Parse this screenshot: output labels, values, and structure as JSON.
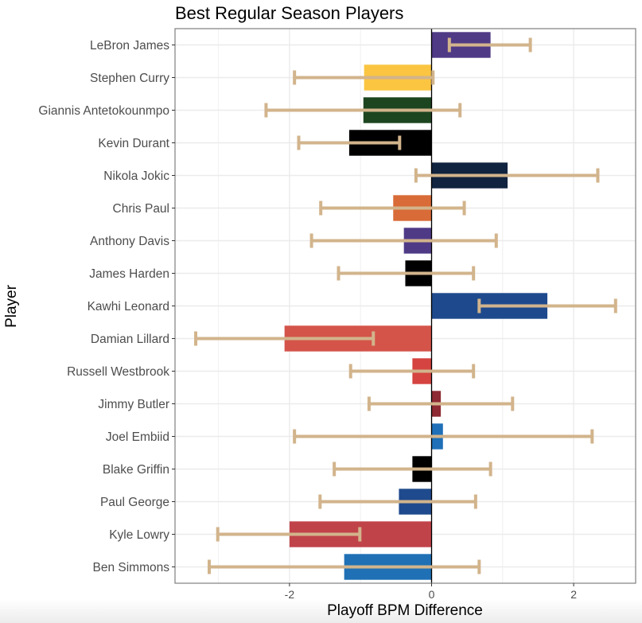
{
  "chart_data": {
    "type": "bar",
    "orientation": "horizontal",
    "title": "Best Regular Season Players",
    "xlabel": "Playoff BPM Difference",
    "ylabel": "Player",
    "xlim": [
      -3.6,
      2.85
    ],
    "xticks": [
      -2,
      0,
      2
    ],
    "xtick_labels": [
      "-2",
      "0",
      "2"
    ],
    "grid": true,
    "legend": "none",
    "error_bar_color": "#d2b48c",
    "zero_line_color": "#000000",
    "categories": [
      "LeBron James",
      "Stephen Curry",
      "Giannis Antetokounmpo",
      "Kevin Durant",
      "Nikola Jokic",
      "Chris Paul",
      "Anthony Davis",
      "James Harden",
      "Kawhi Leonard",
      "Damian Lillard",
      "Russell Westbrook",
      "Jimmy Butler",
      "Joel Embiid",
      "Blake Griffin",
      "Paul George",
      "Kyle Lowry",
      "Ben Simmons"
    ],
    "values": [
      0.83,
      -0.95,
      -0.96,
      -1.16,
      1.07,
      -0.54,
      -0.39,
      -0.37,
      1.63,
      -2.07,
      -0.27,
      0.13,
      0.16,
      -0.27,
      -0.46,
      -2.0,
      -1.23
    ],
    "error_low": [
      0.25,
      -1.93,
      -2.33,
      -1.87,
      -0.22,
      -1.56,
      -1.69,
      -1.31,
      0.67,
      -3.32,
      -1.14,
      -0.88,
      -1.93,
      -1.37,
      -1.57,
      -3.01,
      -3.13
    ],
    "error_high": [
      1.39,
      0.02,
      0.4,
      -0.45,
      2.34,
      0.46,
      0.91,
      0.59,
      2.59,
      -0.82,
      0.59,
      1.14,
      2.26,
      0.83,
      0.62,
      -1.01,
      0.67
    ],
    "colors": [
      "#4f3a86",
      "#fbc541",
      "#1c4520",
      "#000000",
      "#10233f",
      "#d86b37",
      "#4f3a86",
      "#000000",
      "#1e4a8d",
      "#d4544a",
      "#d54440",
      "#8e2a33",
      "#1f70b8",
      "#000000",
      "#1f4a8d",
      "#c1434a",
      "#1f70b5"
    ]
  }
}
